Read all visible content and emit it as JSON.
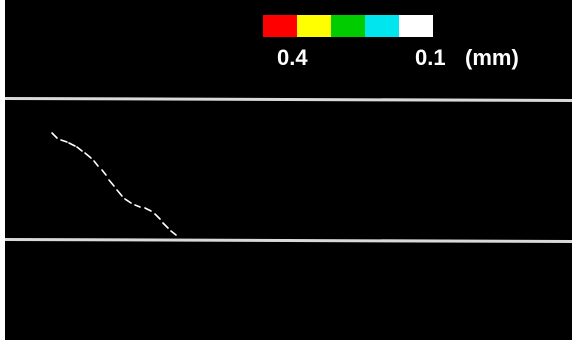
{
  "legend": {
    "colors": [
      "#ff0000",
      "#ffff00",
      "#00cc00",
      "#00e5ee",
      "#ffffff"
    ],
    "max_label": "0.4",
    "min_label": "0.1",
    "unit_label": "(mm)"
  },
  "crack_color": "#ffffff",
  "line_color": "#d9d9d9"
}
